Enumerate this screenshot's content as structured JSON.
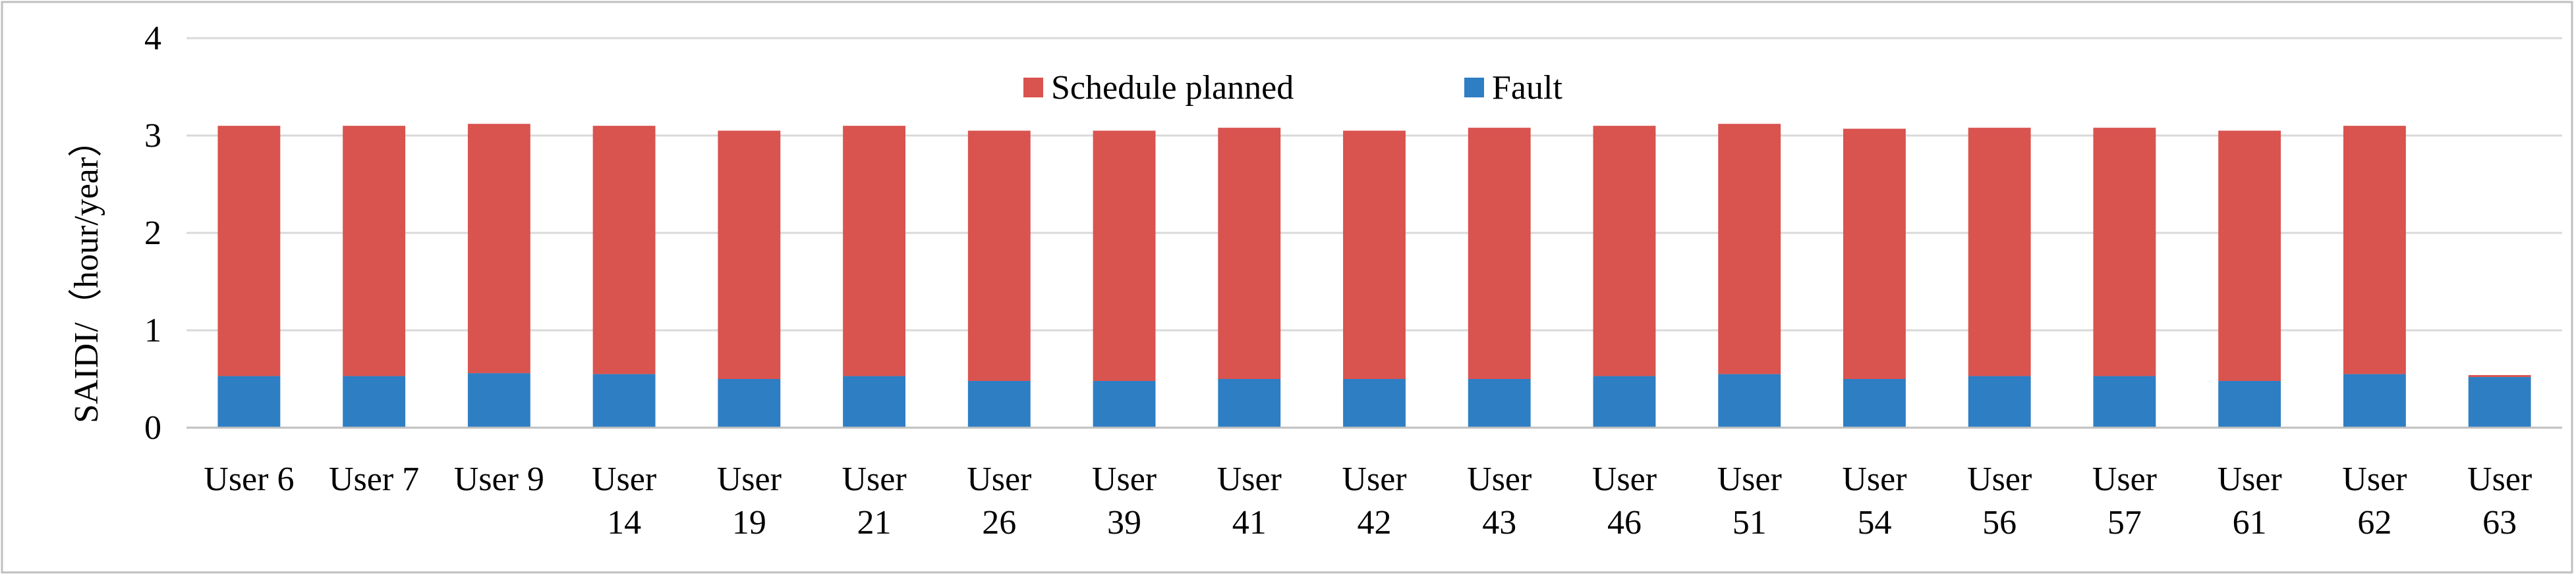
{
  "chart_data": {
    "type": "bar",
    "stacked": true,
    "title": "",
    "xlabel": "",
    "ylabel": "SAIDI/（hour/year）",
    "ylim": [
      0,
      4
    ],
    "yticks": [
      "0",
      "1",
      "2",
      "3",
      "4"
    ],
    "grid": "horizontal",
    "legend_position": "top-center",
    "categories": [
      [
        "User 6"
      ],
      [
        "User 7"
      ],
      [
        "User 9"
      ],
      [
        "User",
        "14"
      ],
      [
        "User",
        "19"
      ],
      [
        "User",
        "21"
      ],
      [
        "User",
        "26"
      ],
      [
        "User",
        "39"
      ],
      [
        "User",
        "41"
      ],
      [
        "User",
        "42"
      ],
      [
        "User",
        "43"
      ],
      [
        "User",
        "46"
      ],
      [
        "User",
        "51"
      ],
      [
        "User",
        "54"
      ],
      [
        "User",
        "56"
      ],
      [
        "User",
        "57"
      ],
      [
        "User",
        "61"
      ],
      [
        "User",
        "62"
      ],
      [
        "User",
        "63"
      ]
    ],
    "series": [
      {
        "name": "Fault",
        "color": "#2E7EC4",
        "values": [
          0.53,
          0.53,
          0.56,
          0.55,
          0.5,
          0.53,
          0.48,
          0.48,
          0.5,
          0.5,
          0.5,
          0.53,
          0.55,
          0.5,
          0.53,
          0.53,
          0.48,
          0.55,
          0.52
        ]
      },
      {
        "name": "Schedule planned",
        "color": "#D9534F",
        "values": [
          2.57,
          2.57,
          2.56,
          2.55,
          2.55,
          2.57,
          2.57,
          2.57,
          2.58,
          2.55,
          2.58,
          2.57,
          2.57,
          2.57,
          2.55,
          2.55,
          2.57,
          2.55,
          0.02
        ]
      }
    ],
    "legend_order": [
      "Schedule planned",
      "Fault"
    ]
  }
}
